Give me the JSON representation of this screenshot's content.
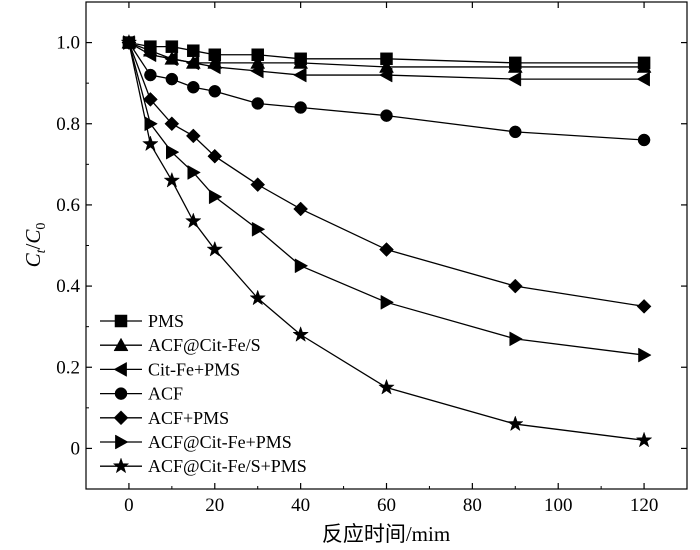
{
  "chart_data": {
    "type": "line",
    "xlabel": "反应时间/mim",
    "ylabel": {
      "c": "C",
      "c_sub": "t",
      "slash": "/",
      "c0": "C",
      "c0_sub": "0"
    },
    "xlim": [
      -10,
      130
    ],
    "ylim": [
      -0.1,
      1.1
    ],
    "x_ticks": [
      0,
      20,
      40,
      60,
      80,
      100,
      120
    ],
    "x_tick_labels": [
      "0",
      "20",
      "40",
      "60",
      "80",
      "100",
      "120"
    ],
    "y_ticks": [
      0,
      0.2,
      0.4,
      0.6,
      0.8,
      1.0
    ],
    "y_tick_labels": [
      "0",
      "0.2",
      "0.4",
      "0.6",
      "0.8",
      "1.0"
    ],
    "grid": false,
    "legend_position": "bottom-left",
    "series": [
      {
        "name": "PMS",
        "marker": "square",
        "x": [
          0,
          5,
          10,
          15,
          20,
          30,
          40,
          60,
          90,
          120
        ],
        "y": [
          1.0,
          0.99,
          0.99,
          0.98,
          0.97,
          0.97,
          0.96,
          0.96,
          0.95,
          0.95
        ]
      },
      {
        "name": "ACF@Cit-Fe/S",
        "marker": "triangle-up",
        "x": [
          0,
          5,
          10,
          15,
          20,
          30,
          40,
          60,
          90,
          120
        ],
        "y": [
          1.0,
          0.98,
          0.96,
          0.95,
          0.95,
          0.95,
          0.95,
          0.94,
          0.94,
          0.94
        ]
      },
      {
        "name": "Cit-Fe+PMS",
        "marker": "triangle-left",
        "x": [
          0,
          5,
          10,
          15,
          20,
          30,
          40,
          60,
          90,
          120
        ],
        "y": [
          1.0,
          0.97,
          0.96,
          0.95,
          0.94,
          0.93,
          0.92,
          0.92,
          0.91,
          0.91
        ]
      },
      {
        "name": "ACF",
        "marker": "circle",
        "x": [
          0,
          5,
          10,
          15,
          20,
          30,
          40,
          60,
          90,
          120
        ],
        "y": [
          1.0,
          0.92,
          0.91,
          0.89,
          0.88,
          0.85,
          0.84,
          0.82,
          0.78,
          0.76
        ]
      },
      {
        "name": "ACF+PMS",
        "marker": "diamond",
        "x": [
          0,
          5,
          10,
          15,
          20,
          30,
          40,
          60,
          90,
          120
        ],
        "y": [
          1.0,
          0.86,
          0.8,
          0.77,
          0.72,
          0.65,
          0.59,
          0.49,
          0.4,
          0.35
        ]
      },
      {
        "name": "ACF@Cit-Fe+PMS",
        "marker": "triangle-right",
        "x": [
          0,
          5,
          10,
          15,
          20,
          30,
          40,
          60,
          90,
          120
        ],
        "y": [
          1.0,
          0.8,
          0.73,
          0.68,
          0.62,
          0.54,
          0.45,
          0.36,
          0.27,
          0.23
        ]
      },
      {
        "name": "ACF@Cit-Fe/S+PMS",
        "marker": "star",
        "x": [
          0,
          5,
          10,
          15,
          20,
          30,
          40,
          60,
          90,
          120
        ],
        "y": [
          1.0,
          0.75,
          0.66,
          0.56,
          0.49,
          0.37,
          0.28,
          0.15,
          0.06,
          0.02
        ]
      }
    ],
    "colors": {
      "line": "#000000",
      "marker": "#000000",
      "axis": "#000000",
      "background": "#ffffff"
    }
  }
}
